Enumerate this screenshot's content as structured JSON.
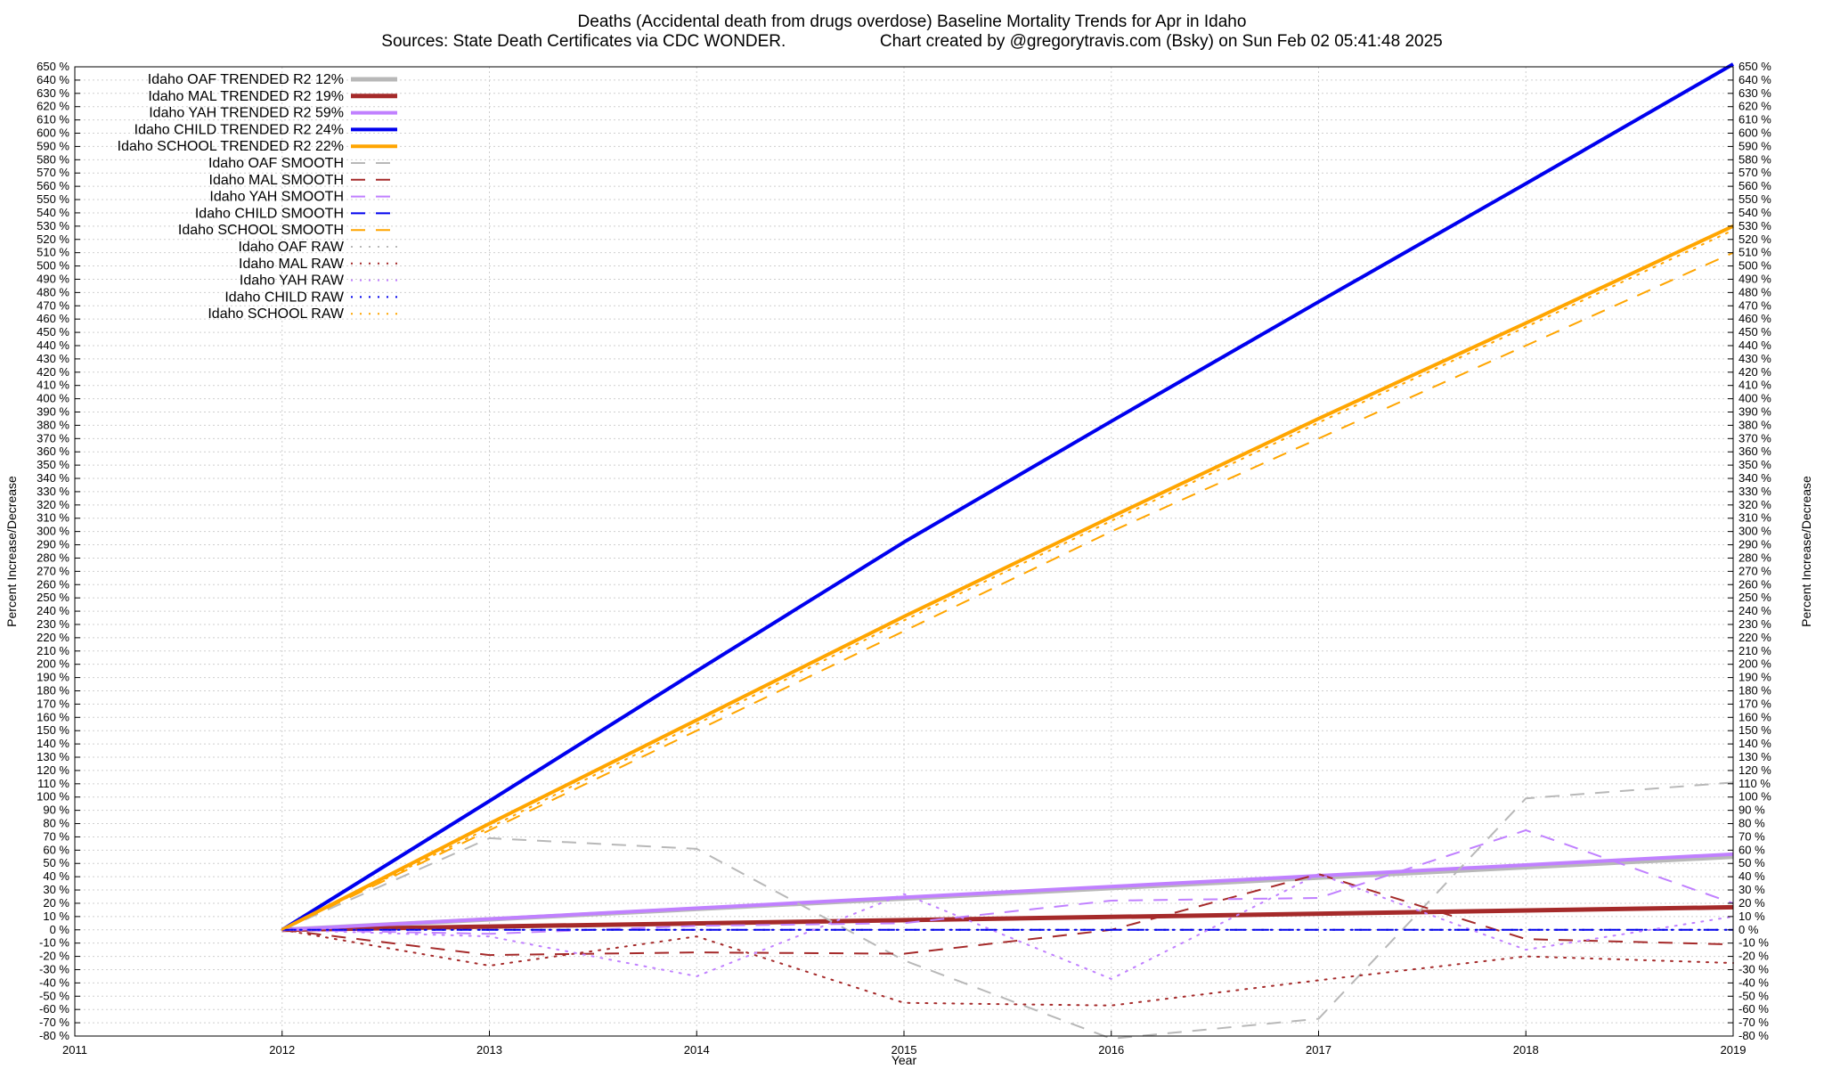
{
  "chart_data": {
    "type": "line",
    "title": "Deaths (Accidental death from drugs overdose)  Baseline Mortality Trends for Apr in Idaho",
    "subtitle_left": "Sources: State Death Certificates via CDC WONDER.",
    "subtitle_right": "Chart created by @gregorytravis.com (Bsky) on Sun Feb 02 05:41:48 2025",
    "xlabel": "Year",
    "ylabel": "Percent Increase/Decrease",
    "xlim": [
      2011,
      2019
    ],
    "ylim": [
      -80,
      650
    ],
    "x_ticks": [
      "2011",
      "2012",
      "2013",
      "2014",
      "2015",
      "2016",
      "2017",
      "2018",
      "2019"
    ],
    "y_tick_step": 10,
    "y_tick_suffix": " %",
    "grid": true,
    "legend_position": "top-left",
    "series": [
      {
        "name": "Idaho OAF TRENDED R2  12%",
        "color": "#b8b8b8",
        "style": "solid",
        "width": 5,
        "x": [
          2012,
          2019
        ],
        "y": [
          0,
          55
        ]
      },
      {
        "name": "Idaho MAL TRENDED R2  19%",
        "color": "#a52a2a",
        "style": "solid",
        "width": 5,
        "x": [
          2012,
          2019
        ],
        "y": [
          0,
          17
        ]
      },
      {
        "name": "Idaho YAH TRENDED R2  59%",
        "color": "#c080ff",
        "style": "solid",
        "width": 4,
        "x": [
          2012,
          2019
        ],
        "y": [
          0,
          57
        ]
      },
      {
        "name": "Idaho CHILD TRENDED R2  24%",
        "color": "#0000ee",
        "style": "solid",
        "width": 4,
        "x": [
          2012,
          2013,
          2014,
          2015,
          2016,
          2017,
          2018,
          2019
        ],
        "y": [
          0,
          97,
          195,
          292,
          383,
          473,
          562,
          652
        ]
      },
      {
        "name": "Idaho SCHOOL TRENDED R2  22%",
        "color": "#ffa500",
        "style": "solid",
        "width": 4,
        "x": [
          2012,
          2013,
          2014,
          2015,
          2016,
          2017,
          2018,
          2019
        ],
        "y": [
          0,
          80,
          158,
          236,
          311,
          385,
          457,
          530
        ]
      },
      {
        "name": "Idaho OAF SMOOTH",
        "color": "#b8b8b8",
        "style": "dashed",
        "width": 2,
        "x": [
          2012,
          2013,
          2014,
          2015,
          2016,
          2017,
          2018,
          2019
        ],
        "y": [
          0,
          69,
          61,
          -23,
          -82,
          -67,
          99,
          111
        ]
      },
      {
        "name": "Idaho MAL SMOOTH",
        "color": "#a52a2a",
        "style": "dashed",
        "width": 2,
        "x": [
          2012,
          2013,
          2014,
          2015,
          2016,
          2017,
          2018,
          2019
        ],
        "y": [
          0,
          -19,
          -17,
          -18,
          0,
          42,
          -7,
          -11
        ]
      },
      {
        "name": "Idaho YAH SMOOTH",
        "color": "#c080ff",
        "style": "dashed",
        "width": 2,
        "x": [
          2012,
          2013,
          2014,
          2015,
          2016,
          2017,
          2018,
          2019
        ],
        "y": [
          0,
          -3,
          3,
          5,
          22,
          24,
          75,
          20
        ]
      },
      {
        "name": "Idaho CHILD SMOOTH",
        "color": "#0000ee",
        "style": "dashed",
        "width": 2,
        "x": [
          2012,
          2019
        ],
        "y": [
          0,
          0
        ]
      },
      {
        "name": "Idaho SCHOOL SMOOTH",
        "color": "#ffa500",
        "style": "dashed",
        "width": 2,
        "x": [
          2012,
          2013,
          2014,
          2015,
          2016,
          2017,
          2018,
          2019
        ],
        "y": [
          0,
          75,
          150,
          225,
          300,
          370,
          440,
          510
        ]
      },
      {
        "name": "Idaho OAF RAW",
        "color": "#b8b8b8",
        "style": "dotted",
        "width": 2,
        "x": [
          2012,
          2013,
          2014,
          2015,
          2016,
          2017,
          2018,
          2019
        ],
        "y": [
          0,
          0,
          0,
          0,
          0,
          0,
          0,
          0
        ]
      },
      {
        "name": "Idaho MAL RAW",
        "color": "#a52a2a",
        "style": "dotted",
        "width": 2,
        "x": [
          2012,
          2013,
          2014,
          2015,
          2016,
          2017,
          2018,
          2019
        ],
        "y": [
          0,
          -27,
          -5,
          -55,
          -57,
          -38,
          -20,
          -25
        ]
      },
      {
        "name": "Idaho YAH RAW",
        "color": "#c080ff",
        "style": "dotted",
        "width": 2,
        "x": [
          2012,
          2013,
          2014,
          2015,
          2016,
          2017,
          2018,
          2019
        ],
        "y": [
          0,
          -5,
          -35,
          27,
          -37,
          42,
          -15,
          10
        ]
      },
      {
        "name": "Idaho CHILD RAW",
        "color": "#0000ee",
        "style": "dotted",
        "width": 2,
        "x": [
          2012,
          2019
        ],
        "y": [
          0,
          0
        ]
      },
      {
        "name": "Idaho SCHOOL RAW",
        "color": "#ffa500",
        "style": "dotted",
        "width": 2,
        "x": [
          2012,
          2013,
          2014,
          2015,
          2016,
          2017,
          2018,
          2019
        ],
        "y": [
          0,
          77,
          155,
          233,
          308,
          382,
          454,
          527
        ]
      }
    ]
  }
}
